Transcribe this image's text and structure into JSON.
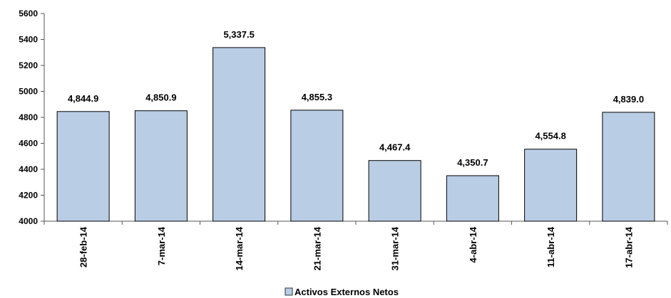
{
  "chart_data": {
    "type": "bar",
    "title": "",
    "xlabel": "",
    "ylabel": "",
    "categories": [
      "28-feb-14",
      "7-mar-14",
      "14-mar-14",
      "21-mar-14",
      "31-mar-14",
      "4-abr-14",
      "11-abr-14",
      "17-abr-14"
    ],
    "series": [
      {
        "name": "Activos Externos Netos",
        "values": [
          4844.9,
          4850.9,
          5337.5,
          4855.3,
          4467.4,
          4350.7,
          4554.8,
          4839.0
        ],
        "data_labels": [
          "4,844.9",
          "4,850.9",
          "5,337.5",
          "4,855.3",
          "4,467.4",
          "4,350.7",
          "4,554.8",
          "4,839.0"
        ],
        "fill_color": "#b9cde5",
        "stroke_color": "#000000"
      }
    ],
    "ylim": [
      4000,
      5600
    ],
    "yticks": [
      4000,
      4200,
      4400,
      4600,
      4800,
      5000,
      5200,
      5400,
      5600
    ],
    "grid": false,
    "legend": "bottom",
    "category_label_rotation": "vertical"
  }
}
